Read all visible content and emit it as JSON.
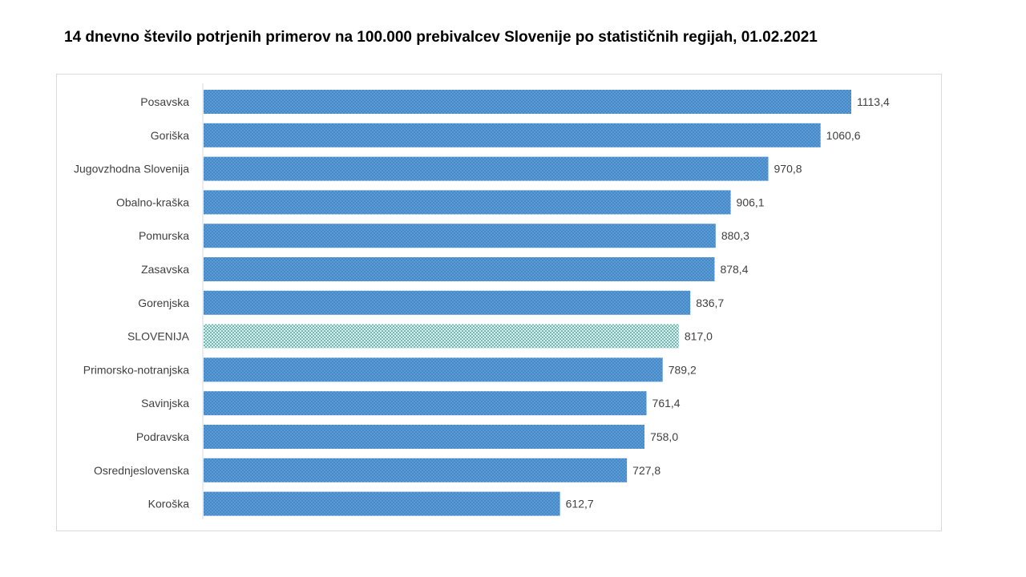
{
  "title": "14 dnevno število potrjenih primerov na 100.000 prebivalcev Slovenije po statističnih regijah, 01.02.2021",
  "colors": {
    "bar": "#5b9bd5",
    "bar_pattern": "#2e75b6",
    "highlight": "#d8f0ec",
    "highlight_pattern": "#00706e",
    "axis": "#d9d9d9",
    "label": "#404040"
  },
  "chart_data": {
    "type": "bar",
    "orientation": "horizontal",
    "title": "14 dnevno število potrjenih primerov na 100.000 prebivalcev Slovenije po statističnih regijah, 01.02.2021",
    "xlabel": "",
    "ylabel": "",
    "grid": false,
    "legend": "none",
    "xlim": [
      0,
      1113.4
    ],
    "highlight_category": "SLOVENIJA",
    "categories": [
      "Posavska",
      "Goriška",
      "Jugovzhodna Slovenija",
      "Obalno-kraška",
      "Pomurska",
      "Zasavska",
      "Gorenjska",
      "SLOVENIJA",
      "Primorsko-notranjska",
      "Savinjska",
      "Podravska",
      "Osrednjeslovenska",
      "Koroška"
    ],
    "values": [
      1113.4,
      1060.6,
      970.8,
      906.1,
      880.3,
      878.4,
      836.7,
      817.0,
      789.2,
      761.4,
      758.0,
      727.8,
      612.7
    ],
    "value_labels": [
      "1113,4",
      "1060,6",
      "970,8",
      "906,1",
      "880,3",
      "878,4",
      "836,7",
      "817,0",
      "789,2",
      "761,4",
      "758,0",
      "727,8",
      "612,7"
    ]
  }
}
